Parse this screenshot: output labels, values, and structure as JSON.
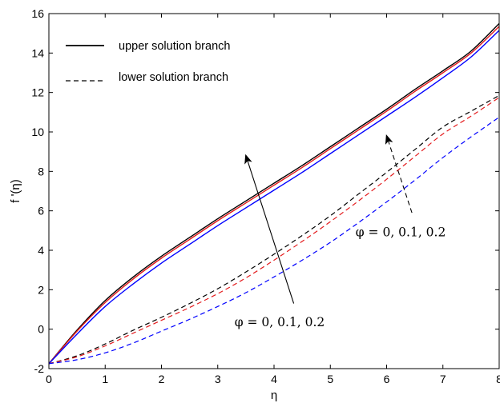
{
  "chart_data": {
    "type": "line",
    "xlabel": "η",
    "ylabel": "f '(η)",
    "xlim": [
      0,
      8
    ],
    "ylim": [
      -2,
      16
    ],
    "xticks": [
      0,
      1,
      2,
      3,
      4,
      5,
      6,
      7,
      8
    ],
    "yticks": [
      -2,
      0,
      2,
      4,
      6,
      8,
      10,
      12,
      14,
      16
    ],
    "x": [
      0,
      0.5,
      1,
      1.5,
      2,
      2.5,
      3,
      3.5,
      4,
      4.5,
      5,
      5.5,
      6,
      6.5,
      7,
      7.5,
      8
    ],
    "legend": {
      "position": "top-left",
      "entries": [
        {
          "label": "upper solution branch",
          "style": "solid"
        },
        {
          "label": "lower solution branch",
          "style": "dashed"
        }
      ]
    },
    "series": [
      {
        "style": "solid",
        "color": "#000000",
        "values": [
          -1.75,
          -0.05,
          1.45,
          2.65,
          3.7,
          4.65,
          5.6,
          6.5,
          7.4,
          8.3,
          9.25,
          10.2,
          11.15,
          12.15,
          13.1,
          14.1,
          15.5
        ]
      },
      {
        "style": "solid",
        "color": "#e41a1c",
        "values": [
          -1.75,
          -0.1,
          1.35,
          2.55,
          3.6,
          4.55,
          5.5,
          6.4,
          7.3,
          8.2,
          9.15,
          10.1,
          11.05,
          12.05,
          13.0,
          14.0,
          15.35
        ]
      },
      {
        "style": "solid",
        "color": "#0000ff",
        "values": [
          -1.75,
          -0.25,
          1.15,
          2.3,
          3.35,
          4.3,
          5.25,
          6.15,
          7.05,
          7.95,
          8.9,
          9.85,
          10.8,
          11.75,
          12.75,
          13.8,
          15.15
        ]
      },
      {
        "style": "dashed",
        "color": "#000000",
        "values": [
          -1.75,
          -1.35,
          -0.75,
          -0.05,
          0.6,
          1.3,
          2.05,
          2.9,
          3.8,
          4.75,
          5.75,
          6.85,
          7.95,
          9.1,
          10.25,
          11.05,
          11.85
        ]
      },
      {
        "style": "dashed",
        "color": "#e41a1c",
        "values": [
          -1.75,
          -1.4,
          -0.85,
          -0.2,
          0.45,
          1.1,
          1.8,
          2.6,
          3.5,
          4.45,
          5.45,
          6.5,
          7.6,
          8.75,
          9.9,
          10.8,
          11.75
        ]
      },
      {
        "style": "dashed",
        "color": "#0000ff",
        "values": [
          -1.75,
          -1.55,
          -1.2,
          -0.7,
          -0.1,
          0.5,
          1.15,
          1.85,
          2.65,
          3.5,
          4.4,
          5.4,
          6.45,
          7.55,
          8.7,
          9.75,
          10.75
        ]
      }
    ],
    "annotations": [
      {
        "text": "φ = 0, 0.1, 0.2",
        "arrow": "solid",
        "from": [
          4.35,
          1.3
        ],
        "to": [
          3.5,
          8.8
        ],
        "label_at": [
          4.1,
          0.15
        ]
      },
      {
        "text": "φ = 0, 0.1, 0.2",
        "arrow": "dashed",
        "from": [
          6.45,
          5.9
        ],
        "to": [
          6.0,
          9.8
        ],
        "label_at": [
          6.25,
          4.7
        ]
      }
    ]
  }
}
